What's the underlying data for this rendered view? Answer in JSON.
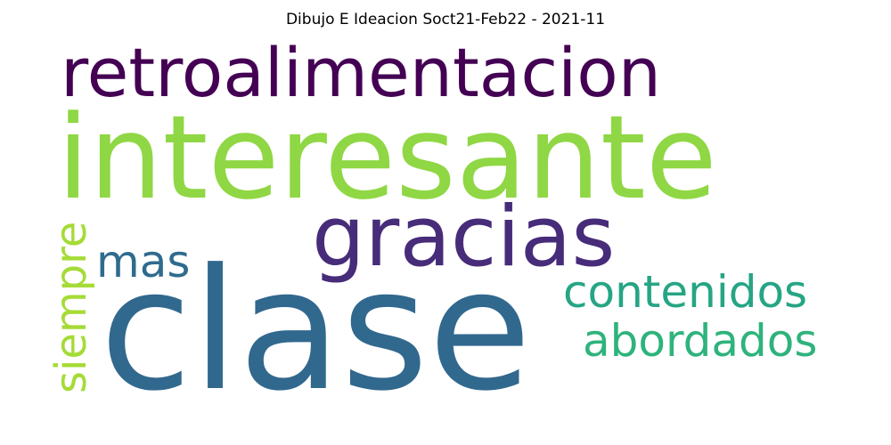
{
  "chart_data": {
    "type": "wordcloud",
    "title": "Dibujo E Ideacion Soct21-Feb22 - 2021-11",
    "words": [
      {
        "text": "retroalimentacion",
        "color": "#440154"
      },
      {
        "text": "interesante",
        "color": "#8fd744"
      },
      {
        "text": "gracias",
        "color": "#472c7a"
      },
      {
        "text": "mas",
        "color": "#2f6b8e"
      },
      {
        "text": "contenidos",
        "color": "#26a584"
      },
      {
        "text": "abordados",
        "color": "#2eb37c"
      },
      {
        "text": "siempre",
        "color": "#a5db36"
      },
      {
        "text": "clase",
        "color": "#31688e"
      }
    ]
  }
}
